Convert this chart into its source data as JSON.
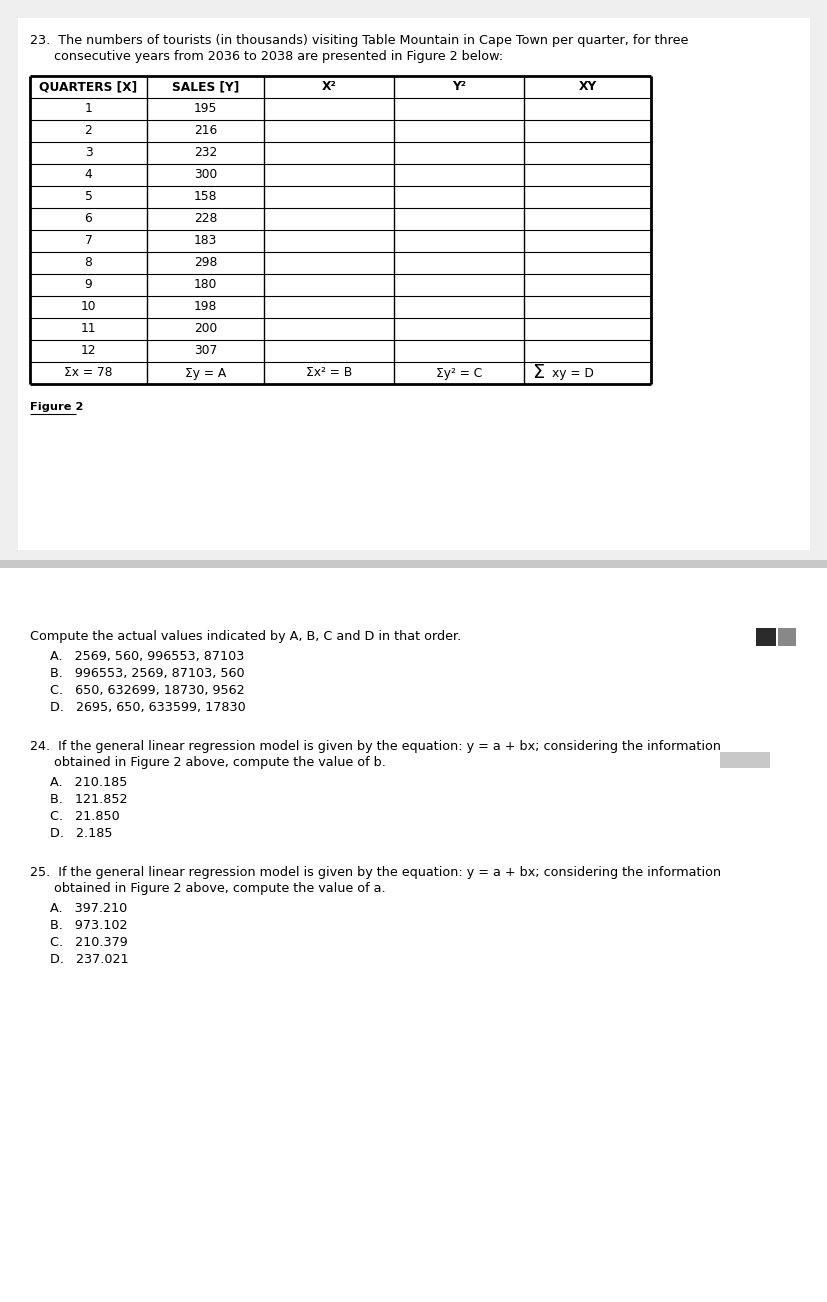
{
  "title_q23_line1": "23.  The numbers of tourists (in thousands) visiting Table Mountain in Cape Town per quarter, for three",
  "title_q23_line2": "      consecutive years from 2036 to 2038 are presented in Figure 2 below:",
  "table_headers": [
    "QUARTERS [X]",
    "SALES [Y]",
    "X²",
    "Y²",
    "XY"
  ],
  "quarters": [
    "1",
    "2",
    "3",
    "4",
    "5",
    "6",
    "7",
    "8",
    "9",
    "10",
    "11",
    "12"
  ],
  "sales": [
    "195",
    "216",
    "232",
    "300",
    "158",
    "228",
    "183",
    "298",
    "180",
    "198",
    "200",
    "307"
  ],
  "sum_row_0": "Σx = 78",
  "sum_row_1": "Σy = A",
  "sum_row_2": "Σx² = B",
  "sum_row_3": "Σy² = C",
  "sum_row_4_sigma": "Σ",
  "sum_row_4_rest": "xy = D",
  "figure_label": "Figure 2",
  "top_bg": "#f0f0f0",
  "bottom_bg": "#ffffff",
  "white": "#ffffff",
  "black": "#000000",
  "dark_square1_color": "#2a2a2a",
  "dark_square2_color": "#888888",
  "q23_intro": "Compute the actual values indicated by A, B, C and D in that order.",
  "q23_opts": [
    "A.   2569, 560, 996553, 87103",
    "B.   996553, 2569, 87103, 560",
    "C.   650, 632699, 18730, 9562",
    "D.   2695, 650, 633599, 17830"
  ],
  "q24_line1": "24.  If the general linear regression model is given by the equation: y = a + bx; considering the information",
  "q24_line2": "      obtained in Figure 2 above, compute the value of b.",
  "q24_opts": [
    "A.   210.185",
    "B.   121.852",
    "C.   21.850",
    "D.   2.185"
  ],
  "q25_line1": "25.  If the general linear regression model is given by the equation: y = a + bx; considering the information",
  "q25_line2": "      obtained in Figure 2 above, compute the value of a.",
  "q25_opts": [
    "A.   397.210",
    "B.   973.102",
    "C.   210.379",
    "D.   237.021"
  ],
  "fs_body": 9.2,
  "fs_table_header": 8.8,
  "fs_table_data": 8.8,
  "fs_figure": 8.2
}
